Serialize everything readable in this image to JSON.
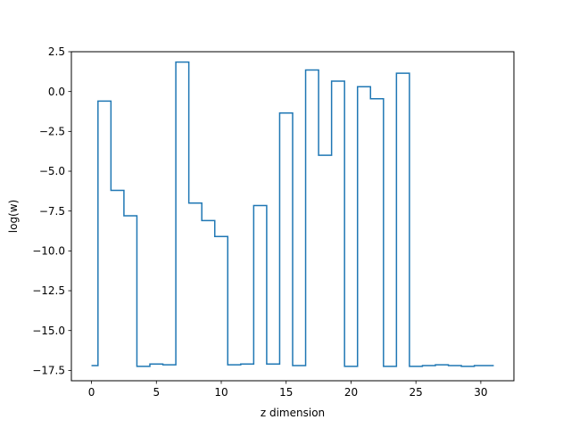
{
  "chart_data": {
    "type": "line",
    "drawstyle": "steps-mid",
    "title": "",
    "xlabel": "z dimension",
    "ylabel": "log(w)",
    "xlim": [
      -1.55,
      32.55
    ],
    "ylim": [
      -18.15,
      2.5
    ],
    "xticks": [
      0,
      5,
      10,
      15,
      20,
      25,
      30
    ],
    "yticks": [
      2.5,
      0.0,
      -2.5,
      -5.0,
      -7.5,
      -10.0,
      -12.5,
      -15.0,
      -17.5
    ],
    "ytick_labels": [
      "2.5",
      "0.0",
      "−2.5",
      "−5.0",
      "−7.5",
      "−10.0",
      "−12.5",
      "−15.0",
      "−17.5"
    ],
    "grid": false,
    "series": [
      {
        "name": "",
        "color": "#1f77b4",
        "x": [
          0,
          1,
          2,
          3,
          4,
          5,
          6,
          7,
          8,
          9,
          10,
          11,
          12,
          13,
          14,
          15,
          16,
          17,
          18,
          19,
          20,
          21,
          22,
          23,
          24,
          25,
          26,
          27,
          28,
          29,
          30,
          31
        ],
        "values": [
          -17.2,
          -0.6,
          -6.2,
          -7.8,
          -17.25,
          -17.1,
          -17.15,
          1.85,
          -7.0,
          -8.1,
          -9.1,
          -17.15,
          -17.1,
          -7.15,
          -17.1,
          -1.35,
          -17.2,
          1.35,
          -4.0,
          0.65,
          -17.25,
          0.3,
          -0.45,
          -17.25,
          1.15,
          -17.25,
          -17.2,
          -17.15,
          -17.2,
          -17.25,
          -17.2,
          -17.2
        ]
      }
    ]
  }
}
